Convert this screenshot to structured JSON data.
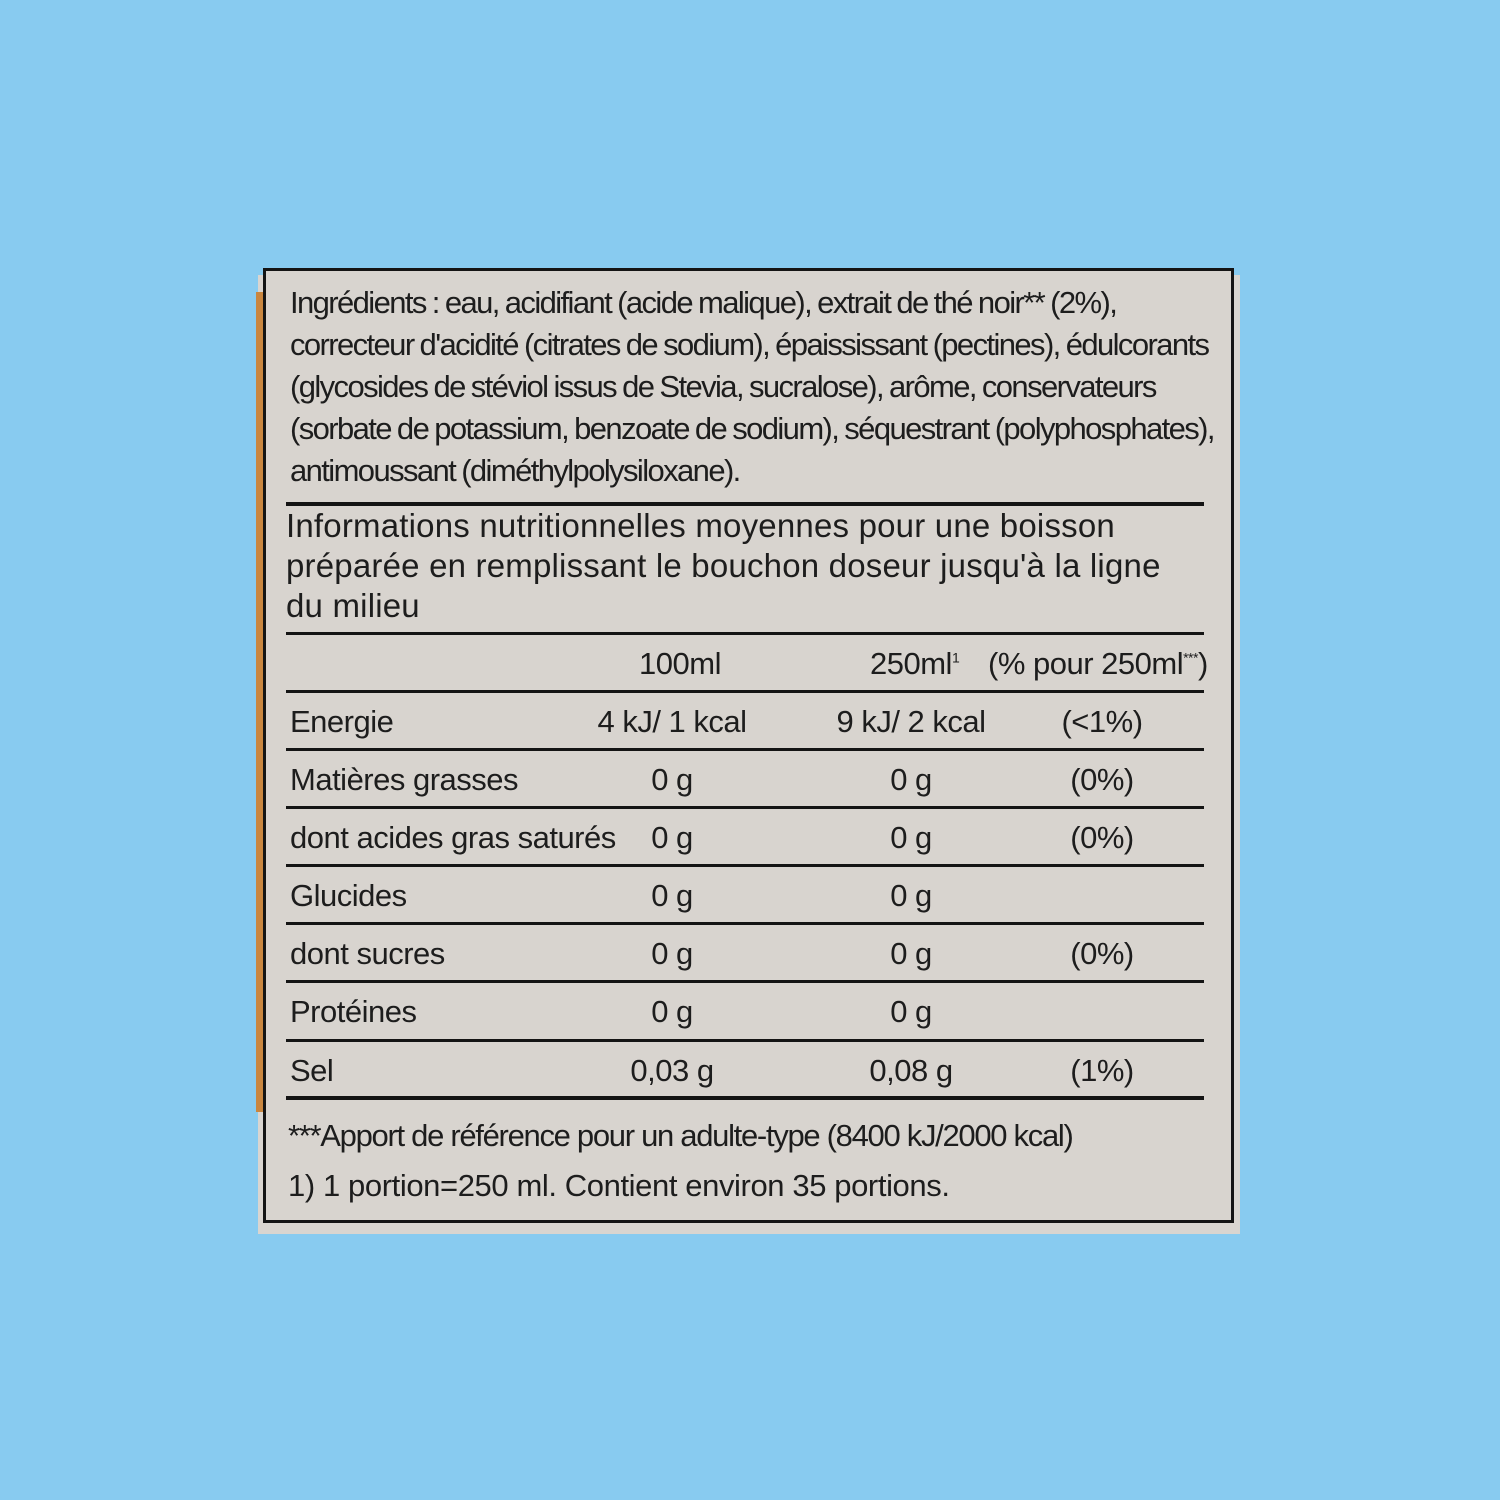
{
  "ingredients": {
    "label": "Ingrédients :",
    "text": "eau, acidifiant (acide malique), extrait de thé noir** (2%), correcteur d'acidité (citrates de sodium), épaississant (pectines), édulcorants (glycosides de stéviol issus de Stevia, sucralose), arôme, conservateurs (sorbate de potassium, benzoate de sodium), séquestrant (polyphosphates), antimoussant (diméthylpolysiloxane)."
  },
  "nutrition": {
    "heading": "Informations nutritionnelles moyennes pour une boisson préparée en remplissant le bouchon doseur jusqu'à la ligne du milieu",
    "columns": [
      "100ml",
      "250ml",
      "1",
      "(% pour 250ml",
      "***",
      ")"
    ],
    "rows": [
      {
        "name": "Energie",
        "per100": "4 kJ/ 1 kcal",
        "per250": "9 kJ/ 2 kcal",
        "pct": "(<1%)"
      },
      {
        "name": "Matières grasses",
        "per100": "0 g",
        "per250": "0 g",
        "pct": "(0%)"
      },
      {
        "name": "dont acides gras saturés",
        "per100": "0 g",
        "per250": "0 g",
        "pct": "(0%)"
      },
      {
        "name": "Glucides",
        "per100": "0 g",
        "per250": "0 g",
        "pct": ""
      },
      {
        "name": "dont sucres",
        "per100": "0 g",
        "per250": "0 g",
        "pct": "(0%)"
      },
      {
        "name": "Protéines",
        "per100": "0 g",
        "per250": "0 g",
        "pct": ""
      },
      {
        "name": "Sel",
        "per100": "0,03 g",
        "per250": "0,08 g",
        "pct": "(1%)"
      }
    ]
  },
  "footnotes": [
    "***Apport de référence pour un adulte-type (8400 kJ/2000 kcal)",
    "1) 1 portion=250 ml. Contient environ 35 portions."
  ],
  "colors": {
    "background": "#88cbf0",
    "label": "#d8d4cf",
    "text": "#1d1d1d"
  }
}
